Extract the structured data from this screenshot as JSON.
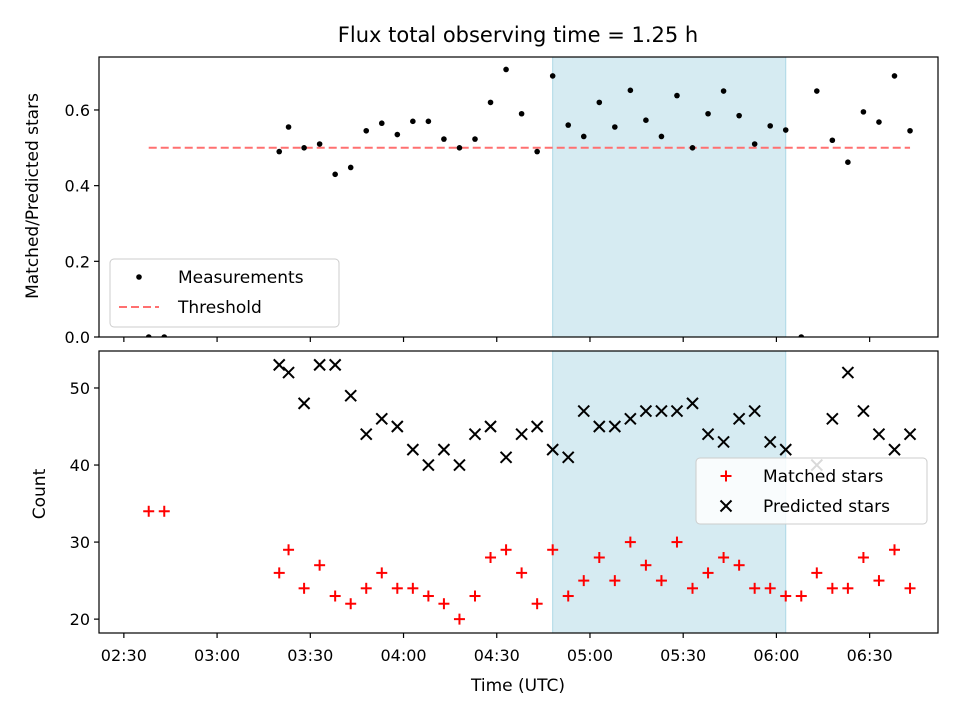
{
  "chart_data": [
    {
      "type": "scatter",
      "title": "Flux total observing time = 1.25 h",
      "xlabel": "",
      "ylabel": "Matched/Predicted stars",
      "xlim": [
        "02:22",
        "06:52"
      ],
      "ylim": [
        0,
        0.74
      ],
      "yticks": [
        "0.0",
        "0.2",
        "0.4",
        "0.6"
      ],
      "shaded_region": [
        "04:48",
        "06:03"
      ],
      "threshold": {
        "name": "Threshold",
        "y": 0.5,
        "x_start": "02:38",
        "x_end": "06:43"
      },
      "legend_position": "lower-left",
      "series": [
        {
          "name": "Measurements",
          "x": [
            "02:38",
            "02:43",
            "03:20",
            "03:23",
            "03:28",
            "03:33",
            "03:38",
            "03:43",
            "03:48",
            "03:53",
            "03:58",
            "04:03",
            "04:08",
            "04:13",
            "04:18",
            "04:23",
            "04:28",
            "04:33",
            "04:38",
            "04:43",
            "04:48",
            "04:53",
            "04:58",
            "05:03",
            "05:08",
            "05:13",
            "05:18",
            "05:23",
            "05:28",
            "05:33",
            "05:38",
            "05:43",
            "05:48",
            "05:53",
            "05:58",
            "06:03",
            "06:08",
            "06:13",
            "06:18",
            "06:23",
            "06:28",
            "06:33",
            "06:38",
            "06:43"
          ],
          "y": [
            0.0,
            0.0,
            0.49,
            0.555,
            0.5,
            0.51,
            0.43,
            0.448,
            0.545,
            0.565,
            0.535,
            0.57,
            0.57,
            0.523,
            0.5,
            0.523,
            0.62,
            0.707,
            0.59,
            0.49,
            0.69,
            0.56,
            0.53,
            0.62,
            0.555,
            0.652,
            0.573,
            0.53,
            0.638,
            0.5,
            0.59,
            0.65,
            0.585,
            0.51,
            0.558,
            0.547,
            0.0,
            0.65,
            0.52,
            0.462,
            0.595,
            0.568,
            0.69,
            0.545
          ]
        }
      ]
    },
    {
      "type": "scatter",
      "title": "",
      "xlabel": "Time (UTC)",
      "ylabel": "Count",
      "xlim": [
        "02:22",
        "06:52"
      ],
      "ylim": [
        18.2,
        54.8
      ],
      "yticks": [
        "20",
        "30",
        "40",
        "50"
      ],
      "xticks": [
        "02:30",
        "03:00",
        "03:30",
        "04:00",
        "04:30",
        "05:00",
        "05:30",
        "06:00",
        "06:30"
      ],
      "shaded_region": [
        "04:48",
        "06:03"
      ],
      "legend_position": "center-right",
      "series": [
        {
          "name": "Matched stars",
          "color": "#ff0000",
          "x": [
            "02:38",
            "02:43",
            "03:20",
            "03:23",
            "03:28",
            "03:33",
            "03:38",
            "03:43",
            "03:48",
            "03:53",
            "03:58",
            "04:03",
            "04:08",
            "04:13",
            "04:18",
            "04:23",
            "04:28",
            "04:33",
            "04:38",
            "04:43",
            "04:48",
            "04:53",
            "04:58",
            "05:03",
            "05:08",
            "05:13",
            "05:18",
            "05:23",
            "05:28",
            "05:33",
            "05:38",
            "05:43",
            "05:48",
            "05:53",
            "05:58",
            "06:03",
            "06:08",
            "06:13",
            "06:18",
            "06:23",
            "06:28",
            "06:33",
            "06:38",
            "06:43"
          ],
          "y": [
            34,
            34,
            26,
            29,
            24,
            27,
            23,
            22,
            24,
            26,
            24,
            24,
            23,
            22,
            20,
            23,
            28,
            29,
            26,
            22,
            29,
            23,
            25,
            28,
            25,
            30,
            27,
            25,
            30,
            24,
            26,
            28,
            27,
            24,
            24,
            23,
            23,
            26,
            24,
            24,
            28,
            25,
            29,
            24
          ]
        },
        {
          "name": "Predicted stars",
          "color": "#000000",
          "x": [
            "03:20",
            "03:23",
            "03:28",
            "03:33",
            "03:38",
            "03:43",
            "03:48",
            "03:53",
            "03:58",
            "04:03",
            "04:08",
            "04:13",
            "04:18",
            "04:23",
            "04:28",
            "04:33",
            "04:38",
            "04:43",
            "04:48",
            "04:53",
            "04:58",
            "05:03",
            "05:08",
            "05:13",
            "05:18",
            "05:23",
            "05:28",
            "05:33",
            "05:38",
            "05:43",
            "05:48",
            "05:53",
            "05:58",
            "06:03",
            "06:13",
            "06:18",
            "06:23",
            "06:28",
            "06:33",
            "06:38",
            "06:43"
          ],
          "y": [
            53,
            52,
            48,
            53,
            53,
            49,
            44,
            46,
            45,
            42,
            40,
            42,
            40,
            44,
            45,
            41,
            44,
            45,
            42,
            41,
            47,
            45,
            45,
            46,
            47,
            47,
            47,
            48,
            44,
            43,
            46,
            47,
            43,
            42,
            40,
            46,
            52,
            47,
            44,
            42,
            44
          ]
        }
      ]
    }
  ]
}
